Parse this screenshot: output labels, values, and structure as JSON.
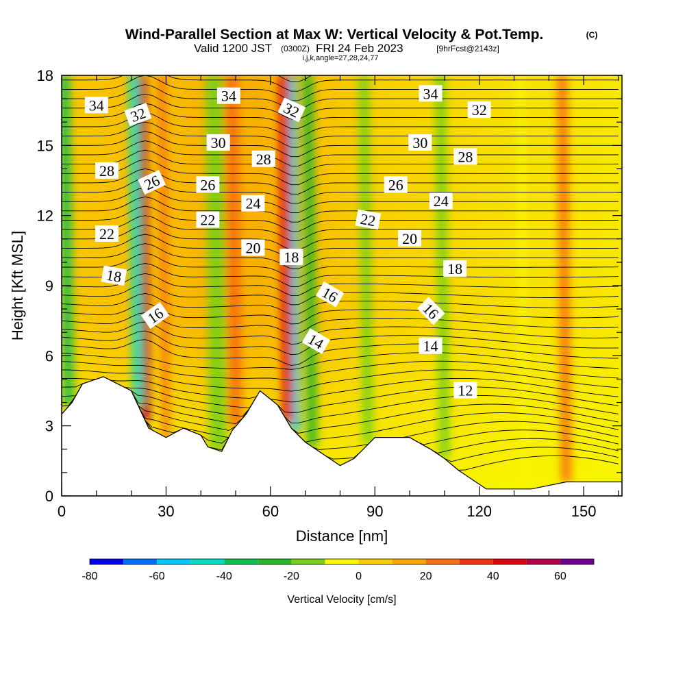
{
  "titles": {
    "main": "Wind-Parallel Section at Max W: Vertical Velocity & Pot.Temp.",
    "copyright": "(C)",
    "valid_prefix": "Valid 1200 JST",
    "valid_utc": "(0300Z)",
    "valid_date": "FRI 24 Feb 2023",
    "forecast": "[9hrFcst@2143z]",
    "indices": "i,j,k,angle=27,28,24,77"
  },
  "chart_data": {
    "type": "heatmap",
    "xlabel": "Distance [nm]",
    "ylabel": "Height [Kft MSL]",
    "xlim": [
      0,
      161
    ],
    "ylim": [
      0,
      18
    ],
    "xticks": [
      0,
      30,
      60,
      90,
      120,
      150
    ],
    "yticks": [
      0,
      3,
      6,
      9,
      12,
      15,
      18
    ],
    "minor_x_step": 10,
    "minor_y_step": 1,
    "colorbar": {
      "label": "Vertical Velocity [cm/s]",
      "ticks": [
        -80,
        -60,
        -40,
        -20,
        0,
        20,
        40,
        60
      ],
      "levels": [
        -80,
        -70,
        -60,
        -50,
        -40,
        -30,
        -20,
        -10,
        0,
        10,
        20,
        30,
        40,
        50,
        60,
        70
      ],
      "colors": [
        "#0000f0",
        "#0070f8",
        "#00c8f8",
        "#00e0c0",
        "#10c050",
        "#28b828",
        "#78d018",
        "#f8f800",
        "#f8d000",
        "#f8a800",
        "#f87010",
        "#f03010",
        "#e00010",
        "#b00048",
        "#700090"
      ]
    },
    "vertical_velocity_bands": [
      {
        "x": 2,
        "width": 3,
        "w": -40
      },
      {
        "x": 24,
        "width": 3,
        "w": 50
      },
      {
        "x": 22,
        "width": 3,
        "w": -45
      },
      {
        "x": 30,
        "width": 2,
        "w": 20
      },
      {
        "x": 45,
        "width": 5,
        "w": -20
      },
      {
        "x": 50,
        "width": 4,
        "w": 25
      },
      {
        "x": 67,
        "width": 3,
        "w": -60
      },
      {
        "x": 65,
        "width": 3,
        "w": 40
      },
      {
        "x": 72,
        "width": 3,
        "w": -25
      },
      {
        "x": 88,
        "width": 3,
        "w": -15
      },
      {
        "x": 110,
        "width": 3,
        "w": -15
      },
      {
        "x": 133,
        "width": 2,
        "w": -10
      },
      {
        "x": 145,
        "width": 3,
        "w": 20
      }
    ],
    "terrain_kft": [
      [
        0,
        3.5
      ],
      [
        3,
        4.0
      ],
      [
        6,
        4.8
      ],
      [
        12,
        5.1
      ],
      [
        20,
        4.5
      ],
      [
        25,
        2.9
      ],
      [
        30,
        2.5
      ],
      [
        35,
        2.9
      ],
      [
        40,
        2.6
      ],
      [
        42,
        2.1
      ],
      [
        46,
        1.9
      ],
      [
        49,
        2.8
      ],
      [
        53,
        3.5
      ],
      [
        57,
        4.5
      ],
      [
        62,
        3.9
      ],
      [
        66,
        2.9
      ],
      [
        70,
        2.3
      ],
      [
        75,
        1.8
      ],
      [
        80,
        1.3
      ],
      [
        84,
        1.6
      ],
      [
        90,
        2.5
      ],
      [
        100,
        2.5
      ],
      [
        106,
        2.0
      ],
      [
        110,
        1.6
      ],
      [
        114,
        1.1
      ],
      [
        118,
        0.7
      ],
      [
        122,
        0.3
      ],
      [
        128,
        0.3
      ],
      [
        135,
        0.3
      ],
      [
        145,
        0.6
      ],
      [
        155,
        0.6
      ],
      [
        161,
        0.6
      ]
    ],
    "contour_labels": [
      {
        "text": "34",
        "x": 10,
        "y": 16.7,
        "angle": 0
      },
      {
        "text": "32",
        "x": 22,
        "y": 16.3,
        "angle": -20
      },
      {
        "text": "28",
        "x": 13,
        "y": 13.9,
        "angle": 0
      },
      {
        "text": "26",
        "x": 26,
        "y": 13.4,
        "angle": -25
      },
      {
        "text": "22",
        "x": 13,
        "y": 11.2,
        "angle": 0
      },
      {
        "text": "18",
        "x": 15,
        "y": 9.4,
        "angle": 10
      },
      {
        "text": "16",
        "x": 27,
        "y": 7.7,
        "angle": -35
      },
      {
        "text": "34",
        "x": 48,
        "y": 17.1,
        "angle": 0
      },
      {
        "text": "30",
        "x": 45,
        "y": 15.1,
        "angle": 0
      },
      {
        "text": "28",
        "x": 58,
        "y": 14.4,
        "angle": 0
      },
      {
        "text": "26",
        "x": 42,
        "y": 13.3,
        "angle": 0
      },
      {
        "text": "24",
        "x": 55,
        "y": 12.5,
        "angle": 0
      },
      {
        "text": "22",
        "x": 42,
        "y": 11.8,
        "angle": 0
      },
      {
        "text": "20",
        "x": 55,
        "y": 10.6,
        "angle": 0
      },
      {
        "text": "32",
        "x": 66,
        "y": 16.5,
        "angle": 25
      },
      {
        "text": "18",
        "x": 66,
        "y": 10.2,
        "angle": 0
      },
      {
        "text": "16",
        "x": 77,
        "y": 8.6,
        "angle": 30
      },
      {
        "text": "14",
        "x": 73,
        "y": 6.6,
        "angle": 30
      },
      {
        "text": "34",
        "x": 106,
        "y": 17.2,
        "angle": 0
      },
      {
        "text": "32",
        "x": 120,
        "y": 16.5,
        "angle": 0
      },
      {
        "text": "30",
        "x": 103,
        "y": 15.1,
        "angle": 0
      },
      {
        "text": "28",
        "x": 116,
        "y": 14.5,
        "angle": 0
      },
      {
        "text": "26",
        "x": 96,
        "y": 13.3,
        "angle": 0
      },
      {
        "text": "24",
        "x": 109,
        "y": 12.6,
        "angle": 0
      },
      {
        "text": "22",
        "x": 88,
        "y": 11.8,
        "angle": 10
      },
      {
        "text": "20",
        "x": 100,
        "y": 11.0,
        "angle": 0
      },
      {
        "text": "18",
        "x": 113,
        "y": 9.7,
        "angle": 0
      },
      {
        "text": "16",
        "x": 106,
        "y": 7.9,
        "angle": 45
      },
      {
        "text": "14",
        "x": 106,
        "y": 6.4,
        "angle": 0
      },
      {
        "text": "12",
        "x": 116,
        "y": 4.5,
        "angle": 0
      }
    ]
  }
}
